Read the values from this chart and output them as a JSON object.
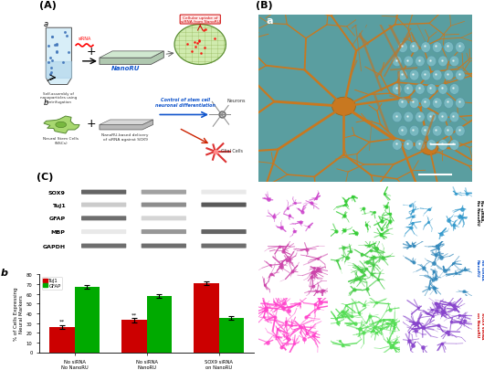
{
  "bar_categories": [
    "No siRNA\nNo NanoRU",
    "No siRNA\nNanoRU",
    "SOX9 siRNA\non NanoRU"
  ],
  "tuj1_values": [
    26,
    33,
    71
  ],
  "gfap_values": [
    67,
    58,
    35
  ],
  "tuj1_errors": [
    2,
    2,
    2
  ],
  "gfap_errors": [
    2,
    2,
    2
  ],
  "tuj1_color": "#cc0000",
  "gfap_color": "#00aa00",
  "ylabel_bar": "% of Cells Expressing\nNeural Markers",
  "ylim_bar": [
    0,
    80
  ],
  "yticks_bar": [
    0,
    10,
    20,
    30,
    40,
    50,
    60,
    70,
    80
  ],
  "legend_tuj1": "TuJ1",
  "legend_gfap": "GFAP",
  "gel_labels": [
    "SOX9",
    "TuJ1",
    "GFAP",
    "MBP",
    "GAPDH"
  ],
  "background_color": "#ffffff",
  "asterisks_tuj1": [
    "**",
    "**",
    ""
  ],
  "asterisks_gfap": [
    "",
    "",
    ""
  ],
  "panel_A_bg": "#f5f5f5",
  "panel_B_bg": "#5a9aaa",
  "gel_bg": "#c8c8c8",
  "nanoru_color": "#1155cc",
  "arrow_blue_color": "#1155cc",
  "arrow_red_color": "#cc2200"
}
